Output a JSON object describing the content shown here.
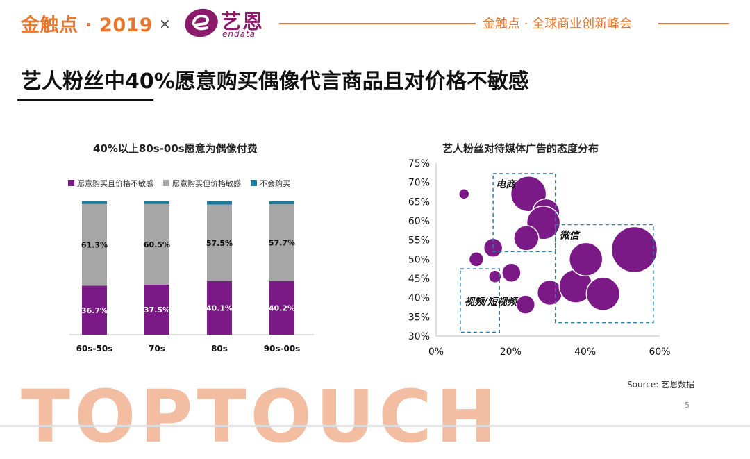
{
  "header": {
    "brand_left": "金触点 · 2019",
    "times": "×",
    "logo_text": "艺恩",
    "logo_sub": "endata",
    "summit": "金触点 · 全球商业创新峰会"
  },
  "page_title": "艺人粉丝中40%愿意购买偶像代言商品且对价格不敏感",
  "footer": {
    "watermark": "TOPTOUCH",
    "source": "Source: 艺恩数据",
    "page_number": "5"
  },
  "colors": {
    "accent": "#e8762c",
    "purple": "#7b1a87",
    "gray": "#a6a6a6",
    "teal": "#1c7a9c"
  },
  "chart_data": [
    {
      "type": "bar",
      "stacked": true,
      "title": "40%以上80s-00s愿意为偶像付费",
      "categories": [
        "60s-50s",
        "70s",
        "80s",
        "90s-00s"
      ],
      "series": [
        {
          "name": "愿意购买且价格不敏感",
          "values": [
            36.7,
            37.5,
            40.1,
            40.2
          ],
          "labels": [
            "36.7%",
            "37.5%",
            "40.1%",
            "40.2%"
          ],
          "color": "#7b1a87"
        },
        {
          "name": "愿意购买但价格敏感",
          "values": [
            61.3,
            60.5,
            57.5,
            57.7
          ],
          "labels": [
            "61.3%",
            "60.5%",
            "57.5%",
            "57.7%"
          ],
          "color": "#a6a6a6"
        },
        {
          "name": "不会购买",
          "values": [
            2.0,
            2.0,
            2.4,
            2.1
          ],
          "color": "#1c7a9c"
        }
      ],
      "ylim": [
        0,
        100
      ],
      "legend": "top",
      "grid": false
    },
    {
      "type": "scatter",
      "bubble": true,
      "title": "艺人粉丝对待媒体广告的态度分布",
      "x_ticks": [
        "0%",
        "20%",
        "40%",
        "60%"
      ],
      "y_ticks": [
        "30%",
        "35%",
        "40%",
        "45%",
        "50%",
        "55%",
        "60%",
        "65%",
        "70%",
        "75%"
      ],
      "xlim": [
        0,
        60
      ],
      "ylim": [
        30,
        75
      ],
      "color": "#7b1a87",
      "points": [
        {
          "x": 7.5,
          "y": 67,
          "size": 0.5
        },
        {
          "x": 24.8,
          "y": 67,
          "size": 1.7
        },
        {
          "x": 29.5,
          "y": 62.2,
          "size": 1.3
        },
        {
          "x": 28.8,
          "y": 59.5,
          "size": 1.6
        },
        {
          "x": 24.2,
          "y": 55.5,
          "size": 1.2
        },
        {
          "x": 15.3,
          "y": 53,
          "size": 0.9
        },
        {
          "x": 10.8,
          "y": 50,
          "size": 0.7
        },
        {
          "x": 20.2,
          "y": 46.5,
          "size": 0.9
        },
        {
          "x": 15.8,
          "y": 45.5,
          "size": 0.6
        },
        {
          "x": 24,
          "y": 38.2,
          "size": 0.9
        },
        {
          "x": 30.5,
          "y": 41.3,
          "size": 1.2
        },
        {
          "x": 37.5,
          "y": 43,
          "size": 1.6
        },
        {
          "x": 40.2,
          "y": 50,
          "size": 1.6
        },
        {
          "x": 44.8,
          "y": 41,
          "size": 1.6
        },
        {
          "x": 53.2,
          "y": 52.5,
          "size": 2.2
        }
      ],
      "groups": [
        {
          "label": "电商",
          "x0": 15.3,
          "x1": 32,
          "y0": 52,
          "y1": 72.3
        },
        {
          "label": "微信",
          "x0": 32,
          "x1": 58.3,
          "y0": 33.5,
          "y1": 59
        },
        {
          "label": "视频/短视频",
          "x0": 6.5,
          "x1": 17,
          "y0": 31,
          "y1": 47.5
        }
      ]
    }
  ]
}
